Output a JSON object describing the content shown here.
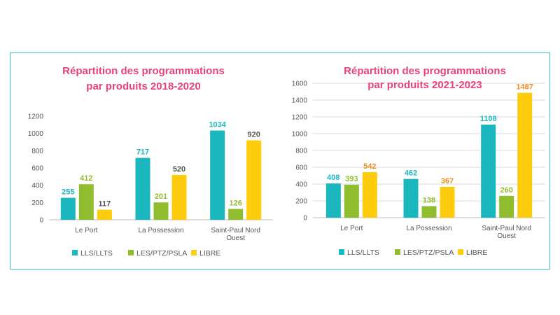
{
  "chart_data": [
    {
      "type": "bar",
      "title": [
        "Répartition des programmations",
        "par produits 2018-2020"
      ],
      "categories": [
        [
          "Le Port"
        ],
        [
          "La Possession"
        ],
        [
          "Saint-Paul Nord",
          "Ouest"
        ]
      ],
      "ylim": [
        0,
        1200
      ],
      "yticks": [
        0,
        200,
        400,
        600,
        800,
        1000,
        1200
      ],
      "grid": false,
      "legend_position": "bottom",
      "series": [
        {
          "name": "LLS/LLTS",
          "color": "#1bb7be",
          "label_color": "#1bb7be",
          "values": [
            255,
            717,
            1034
          ]
        },
        {
          "name": "LES/PTZ/PSLA",
          "color": "#8fbd2e",
          "label_color": "#8fbd2e",
          "values": [
            412,
            201,
            126
          ]
        },
        {
          "name": "LIBRE",
          "color": "#fdcc0c",
          "label_color": "#555555",
          "values": [
            117,
            520,
            920
          ]
        }
      ]
    },
    {
      "type": "bar",
      "title": [
        "Répartition des programmations",
        "par produits 2021-2023"
      ],
      "categories": [
        [
          "Le Port"
        ],
        [
          "La Possession"
        ],
        [
          "Saint-Paul Nord",
          "Ouest"
        ]
      ],
      "ylim": [
        0,
        1600
      ],
      "yticks": [
        0,
        200,
        400,
        600,
        800,
        1000,
        1200,
        1400,
        1600
      ],
      "grid": true,
      "legend_position": "bottom",
      "series": [
        {
          "name": "LLS/LLTS",
          "color": "#1bb7be",
          "label_color": "#1bb7be",
          "values": [
            408,
            462,
            1108
          ]
        },
        {
          "name": "LES/PTZ/PSLA",
          "color": "#8fbd2e",
          "label_color": "#8fbd2e",
          "values": [
            393,
            138,
            260
          ]
        },
        {
          "name": "LIBRE",
          "color": "#fdcc0c",
          "label_color": "#f28c1f",
          "values": [
            542,
            367,
            1487
          ]
        }
      ]
    }
  ]
}
